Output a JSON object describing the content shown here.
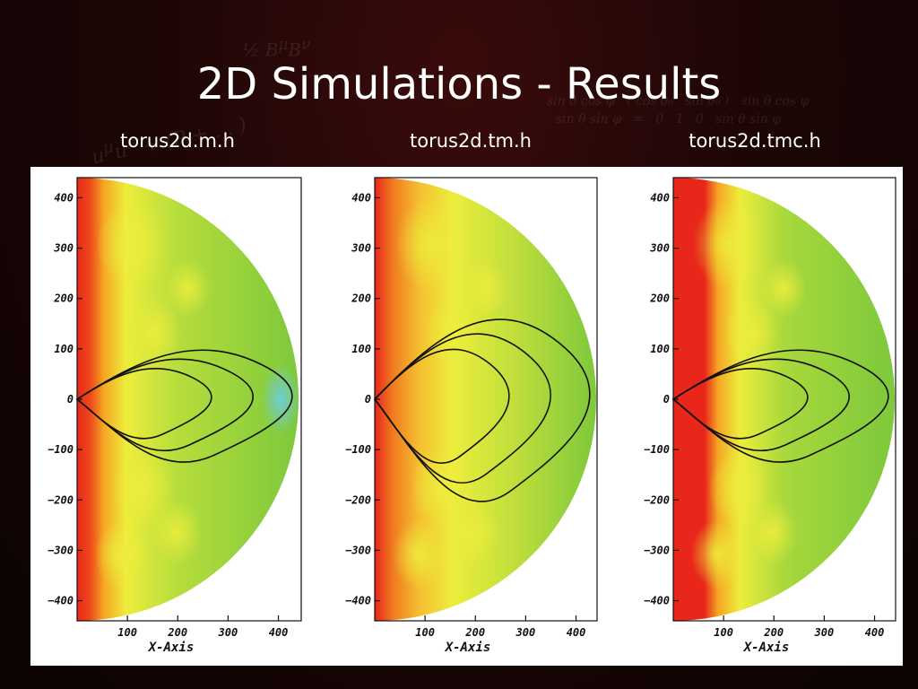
{
  "slide": {
    "title": "2D Simulations - Results"
  },
  "panels": [
    {
      "label": "torus2d.m.h"
    },
    {
      "label": "torus2d.tm.h"
    },
    {
      "label": "torus2d.tmc.h"
    }
  ],
  "axes": {
    "x_label": "X-Axis",
    "x_ticks": [
      "100",
      "200",
      "300",
      "400"
    ],
    "y_ticks": [
      "400",
      "300",
      "200",
      "100",
      "0",
      "−100",
      "−200",
      "−300",
      "−400"
    ]
  },
  "colors": {
    "red": "#e8261a",
    "orange": "#f5a623",
    "yellow": "#eded3c",
    "green": "#7cc83c",
    "cyan": "#6ccde8",
    "contour": "#111111"
  }
}
